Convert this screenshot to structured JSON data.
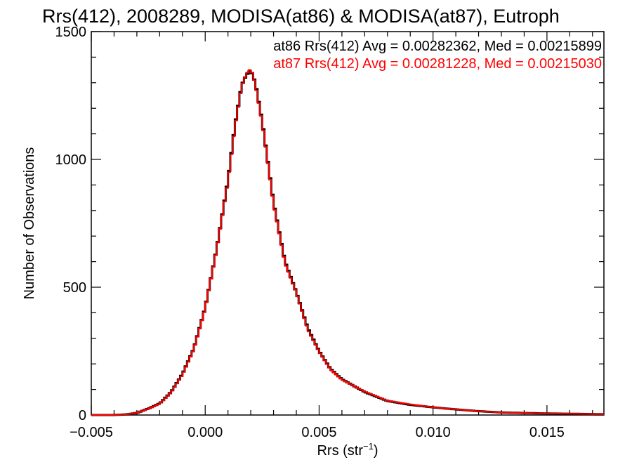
{
  "chart_data": {
    "type": "line",
    "title": "Rrs(412), 2008289, MODISA(at86) & MODISA(at87), Eutroph",
    "xlabel_main": "Rrs (str",
    "xlabel_sup": "−1",
    "xlabel_close": ")",
    "ylabel": "Number of Observations",
    "xlim": [
      -0.005,
      0.0175
    ],
    "ylim": [
      0,
      1500
    ],
    "x_ticks": [
      -0.005,
      0.0,
      0.005,
      0.01,
      0.015
    ],
    "x_tick_labels": [
      "−0.005",
      "0.000",
      "0.005",
      "0.010",
      "0.015"
    ],
    "y_ticks": [
      0,
      500,
      1000,
      1500
    ],
    "y_tick_labels": [
      "0",
      "500",
      "1000",
      "1500"
    ],
    "annotations": [
      {
        "text": "at86 Rrs(412) Avg = 0.00282362, Med = 0.00215899",
        "color": "#000000"
      },
      {
        "text": "at87 Rrs(412) Avg = 0.00281228, Med = 0.00215030",
        "color": "#ff0000"
      }
    ],
    "series": [
      {
        "color": "#000000",
        "x": [
          -0.005,
          -0.004,
          -0.0035,
          -0.003,
          -0.0025,
          -0.002,
          -0.0015,
          -0.001,
          -0.0005,
          0.0,
          0.0005,
          0.001,
          0.0013,
          0.0016,
          0.0018,
          0.002,
          0.0022,
          0.0025,
          0.003,
          0.0035,
          0.004,
          0.0045,
          0.005,
          0.0055,
          0.006,
          0.007,
          0.008,
          0.009,
          0.01,
          0.011,
          0.012,
          0.013,
          0.014,
          0.015,
          0.016,
          0.0175
        ],
        "y": [
          0,
          0,
          2,
          8,
          25,
          45,
          90,
          160,
          260,
          420,
          650,
          920,
          1130,
          1290,
          1330,
          1350,
          1300,
          1150,
          830,
          600,
          480,
          340,
          250,
          180,
          140,
          90,
          55,
          40,
          30,
          22,
          15,
          10,
          8,
          6,
          5,
          3
        ]
      },
      {
        "color": "#ff0000",
        "x": [
          -0.005,
          -0.004,
          -0.0035,
          -0.003,
          -0.0025,
          -0.002,
          -0.0015,
          -0.001,
          -0.0005,
          0.0,
          0.0005,
          0.001,
          0.0013,
          0.0016,
          0.0018,
          0.002,
          0.0022,
          0.0025,
          0.003,
          0.0035,
          0.004,
          0.0045,
          0.005,
          0.0055,
          0.006,
          0.007,
          0.008,
          0.009,
          0.01,
          0.011,
          0.012,
          0.013,
          0.014,
          0.015,
          0.016,
          0.0175
        ],
        "y": [
          0,
          0,
          2,
          8,
          24,
          44,
          88,
          158,
          258,
          418,
          648,
          915,
          1125,
          1285,
          1335,
          1355,
          1295,
          1145,
          825,
          595,
          478,
          335,
          248,
          178,
          138,
          92,
          56,
          42,
          30,
          22,
          15,
          10,
          8,
          6,
          5,
          3
        ]
      }
    ]
  }
}
